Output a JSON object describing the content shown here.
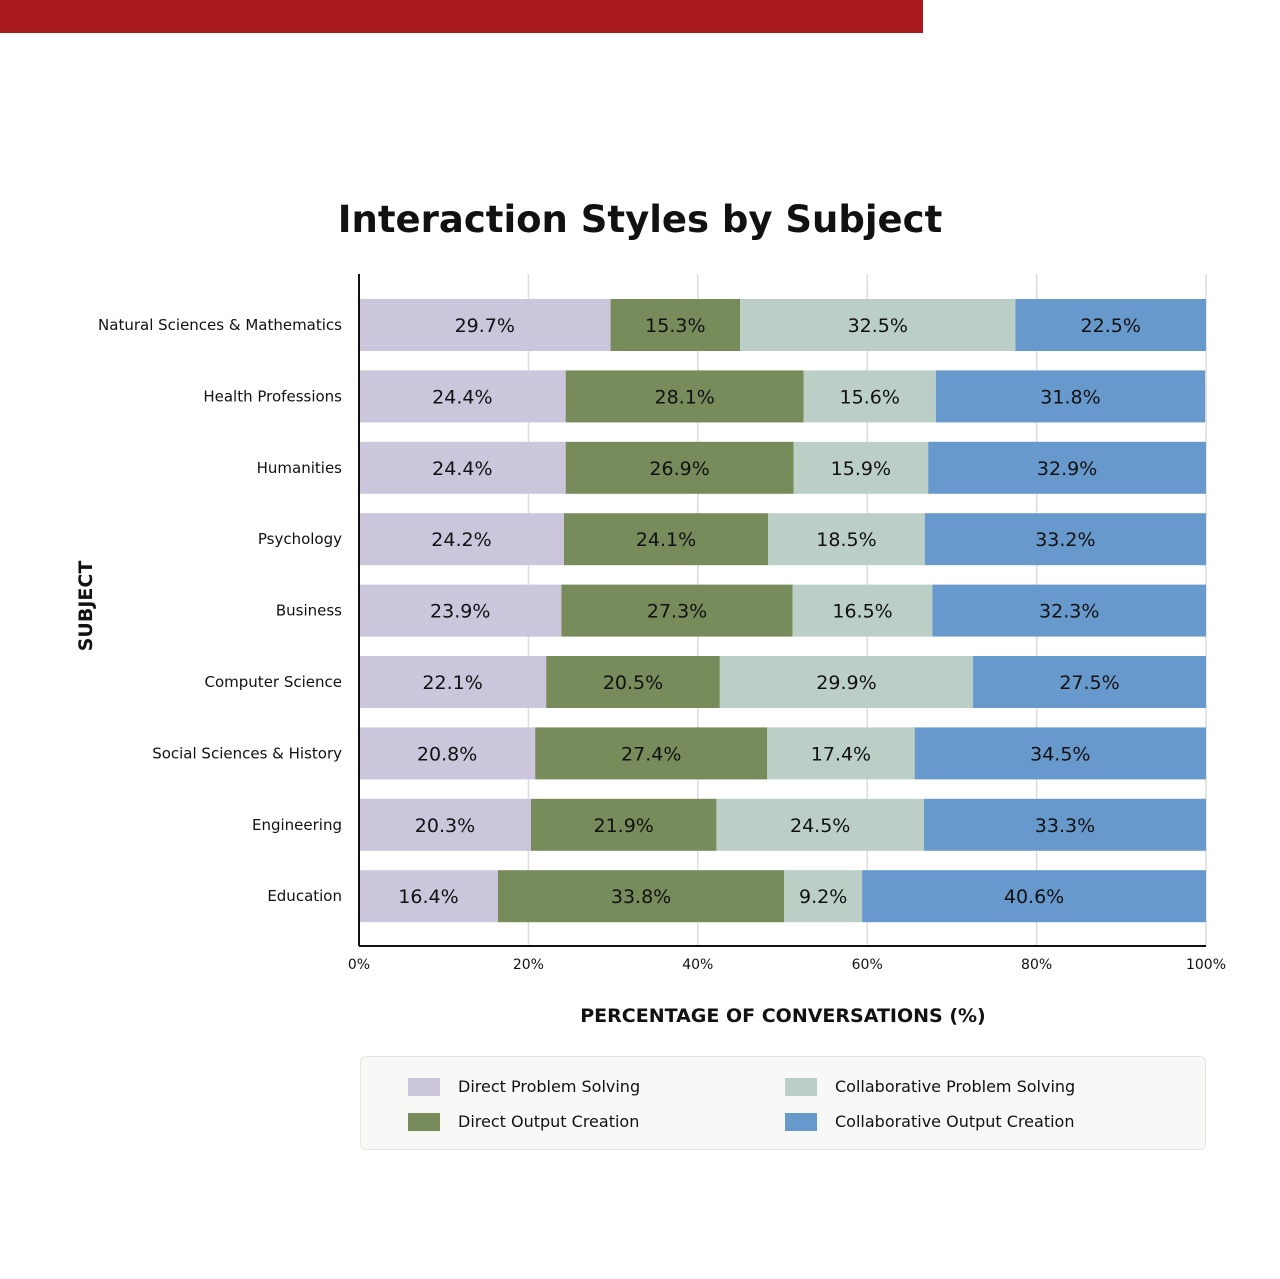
{
  "chart_data": {
    "type": "bar",
    "orientation": "horizontal",
    "stacked": true,
    "title": "Interaction Styles by Subject",
    "xlabel": "PERCENTAGE OF CONVERSATIONS (%)",
    "ylabel": "SUBJECT",
    "xlim": [
      0,
      100
    ],
    "x_ticks": [
      "0%",
      "20%",
      "40%",
      "60%",
      "80%",
      "100%"
    ],
    "grid": true,
    "legend_position": "bottom",
    "categories": [
      "Natural Sciences & Mathematics",
      "Health Professions",
      "Humanities",
      "Psychology",
      "Business",
      "Computer Science",
      "Social Sciences & History",
      "Engineering",
      "Education"
    ],
    "series": [
      {
        "name": "Direct Problem Solving",
        "color": "#cbc6dc",
        "values": [
          29.7,
          24.4,
          24.4,
          24.2,
          23.9,
          22.1,
          20.8,
          20.3,
          16.4
        ],
        "labels": [
          "29.7%",
          "24.4%",
          "24.4%",
          "24.2%",
          "23.9%",
          "22.1%",
          "20.8%",
          "20.3%",
          "16.4%"
        ]
      },
      {
        "name": "Direct Output Creation",
        "color": "#788b5b",
        "values": [
          15.3,
          28.1,
          26.9,
          24.1,
          27.3,
          20.5,
          27.4,
          21.9,
          33.8
        ],
        "labels": [
          "15.3%",
          "28.1%",
          "26.9%",
          "24.1%",
          "27.3%",
          "20.5%",
          "27.4%",
          "21.9%",
          "33.8%"
        ]
      },
      {
        "name": "Collaborative Problem Solving",
        "color": "#bccfc7",
        "values": [
          32.5,
          15.6,
          15.9,
          18.5,
          16.5,
          29.9,
          17.4,
          24.5,
          9.2
        ],
        "labels": [
          "32.5%",
          "15.6%",
          "15.9%",
          "18.5%",
          "16.5%",
          "29.9%",
          "17.4%",
          "24.5%",
          "9.2%"
        ]
      },
      {
        "name": "Collaborative Output Creation",
        "color": "#6899cd",
        "values": [
          22.5,
          31.8,
          32.9,
          33.2,
          32.3,
          27.5,
          34.5,
          33.3,
          40.6
        ],
        "labels": [
          "22.5%",
          "31.8%",
          "32.9%",
          "33.2%",
          "32.3%",
          "27.5%",
          "34.5%",
          "33.3%",
          "40.6%"
        ]
      }
    ]
  },
  "header_band_color": "#a8191b",
  "legend": {
    "items": [
      {
        "label": "Direct Problem Solving",
        "color": "#cbc6dc"
      },
      {
        "label": "Direct Output Creation",
        "color": "#788b5b"
      },
      {
        "label": "Collaborative Problem Solving",
        "color": "#bccfc7"
      },
      {
        "label": "Collaborative Output Creation",
        "color": "#6899cd"
      }
    ]
  }
}
